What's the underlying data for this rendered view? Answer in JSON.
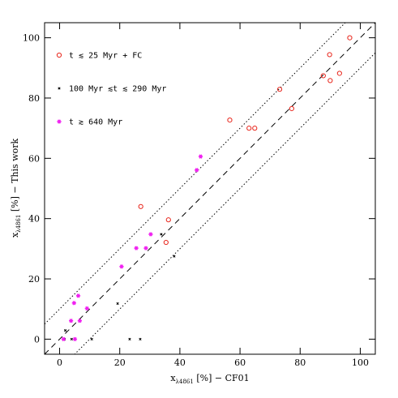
{
  "chart_data": {
    "type": "scatter",
    "xlabel": {
      "main": "x",
      "sub": "λ4861",
      "rest": " [%] − CF01"
    },
    "ylabel": {
      "main": "x",
      "sub": "λ4861",
      "rest": " [%] − This work"
    },
    "xlim": [
      -5,
      105
    ],
    "ylim": [
      -5,
      105
    ],
    "xticks": [
      0,
      20,
      40,
      60,
      80,
      100
    ],
    "yticks": [
      0,
      20,
      40,
      60,
      80,
      100
    ],
    "reference_lines": [
      {
        "slope": 1,
        "intercept": 0,
        "style": "dashed"
      },
      {
        "slope": 1,
        "intercept": 10,
        "style": "dotted"
      },
      {
        "slope": 1,
        "intercept": -10,
        "style": "dotted"
      }
    ],
    "series": [
      {
        "name": "t ≲ 25 Myr + FC",
        "marker": "circle",
        "color": "#e8261c",
        "x": [
          96.5,
          89.8,
          93.1,
          87.7,
          90.0,
          73.2,
          77.2,
          56.6,
          63.0,
          64.9,
          27.0,
          36.2,
          35.4
        ],
        "values": [
          100,
          94.4,
          88.2,
          87.4,
          85.8,
          82.9,
          76.5,
          72.7,
          70.0,
          70.0,
          44.0,
          39.6,
          32.1
        ]
      },
      {
        "name": "100 Myr ≲t ≲ 290 Myr",
        "marker": "cross",
        "color": "#000000",
        "x": [
          1.9,
          1.6,
          4.0,
          10.7,
          23.3,
          26.8,
          19.3,
          38.1,
          33.8
        ],
        "values": [
          2.9,
          0,
          0,
          0,
          0,
          0,
          11.8,
          27.5,
          34.8
        ]
      },
      {
        "name": "t ≳ 640 Myr",
        "marker": "star",
        "color": "#f020f0",
        "x": [
          46.9,
          45.6,
          30.3,
          28.7,
          25.5,
          20.6,
          9.1,
          6.2,
          4.8,
          3.8,
          6.7,
          1.3,
          5.1
        ],
        "values": [
          60.6,
          56.1,
          34.8,
          30.2,
          30.2,
          24.1,
          10.2,
          14.4,
          12.0,
          6.1,
          6.1,
          0,
          0
        ]
      }
    ]
  }
}
